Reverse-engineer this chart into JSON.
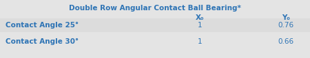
{
  "title": "Double Row Angular Contact Ball Bearing*",
  "col_headers": [
    "X₀",
    "Y₀"
  ],
  "row_labels": [
    "Contact Angle 25°",
    "Contact Angle 30°"
  ],
  "values": [
    [
      "1",
      "0.76"
    ],
    [
      "1",
      "0.66"
    ]
  ],
  "header_color": "#2E74B5",
  "text_color": "#2E74B5",
  "bg_color": "#E4E4E4",
  "row_bg_even": "#DCDCDC",
  "row_bg_odd": "#E4E4E4",
  "title_fontsize": 7.5,
  "header_fontsize": 7.5,
  "data_fontsize": 7.5,
  "figsize": [
    4.5,
    0.85
  ],
  "dpi": 100
}
